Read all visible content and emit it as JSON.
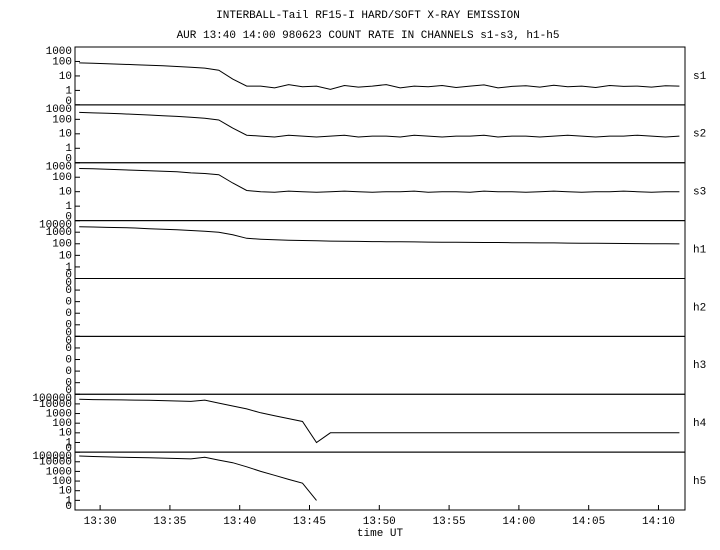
{
  "chart_data": [
    {
      "type": "line",
      "title": "INTERBALL-Tail RF15-I HARD/SOFT X-RAY EMISSION",
      "subtitle": "AUR 13:40 14:00 980623  COUNT RATE IN CHANNELS s1-s3, h1-h5",
      "label": "s1",
      "log": true,
      "color": "#000000",
      "xlim": [
        808.2,
        851.9
      ],
      "ylim": [
        0.1,
        1000
      ],
      "yticks": [
        1000,
        100,
        10,
        1,
        {
          "value": 0.1,
          "label": "0"
        }
      ],
      "x": [
        808.5,
        809.5,
        810.5,
        811.5,
        812.5,
        813.5,
        814.5,
        815.5,
        816.5,
        817.5,
        818.5,
        819.5,
        820.5,
        821.5,
        822.5,
        823.5,
        824.5,
        825.5,
        826.5,
        827.5,
        828.5,
        829.5,
        830.5,
        831.5,
        832.5,
        833.5,
        834.5,
        835.5,
        836.5,
        837.5,
        838.5,
        839.5,
        840.5,
        841.5,
        842.5,
        843.5,
        844.5,
        845.5,
        846.5,
        847.5,
        848.5,
        849.5,
        850.5,
        851.5
      ],
      "values": [
        80,
        75,
        70,
        65,
        60,
        55,
        50,
        45,
        40,
        35,
        25,
        6,
        2,
        2,
        1.5,
        2.5,
        1.8,
        2,
        1.2,
        2.2,
        1.7,
        2,
        2.5,
        1.5,
        2,
        1.8,
        2.2,
        1.6,
        2,
        2.4,
        1.5,
        1.9,
        2.1,
        1.7,
        2.3,
        1.8,
        2,
        1.6,
        2.2,
        1.9,
        2,
        1.7,
        2.1,
        2
      ]
    },
    {
      "type": "line",
      "label": "s2",
      "log": true,
      "color": "#000000",
      "xlim": [
        808.2,
        851.9
      ],
      "ylim": [
        0.1,
        1000
      ],
      "yticks": [
        1000,
        100,
        10,
        1,
        {
          "value": 0.1,
          "label": "0"
        }
      ],
      "x": [
        808.5,
        809.5,
        810.5,
        811.5,
        812.5,
        813.5,
        814.5,
        815.5,
        816.5,
        817.5,
        818.5,
        819.5,
        820.5,
        821.5,
        822.5,
        823.5,
        824.5,
        825.5,
        826.5,
        827.5,
        828.5,
        829.5,
        830.5,
        831.5,
        832.5,
        833.5,
        834.5,
        835.5,
        836.5,
        837.5,
        838.5,
        839.5,
        840.5,
        841.5,
        842.5,
        843.5,
        844.5,
        845.5,
        846.5,
        847.5,
        848.5,
        849.5,
        850.5,
        851.5
      ],
      "values": [
        300,
        280,
        260,
        240,
        220,
        200,
        180,
        160,
        140,
        120,
        90,
        25,
        8,
        7,
        6,
        8,
        7,
        6,
        7,
        8,
        6,
        7,
        7,
        6,
        8,
        7,
        6,
        7,
        7,
        8,
        6,
        7,
        7,
        6,
        7,
        8,
        7,
        6,
        7,
        7,
        8,
        7,
        6,
        7
      ]
    },
    {
      "type": "line",
      "label": "s3",
      "log": true,
      "color": "#000000",
      "xlim": [
        808.2,
        851.9
      ],
      "ylim": [
        0.1,
        1000
      ],
      "yticks": [
        1000,
        100,
        10,
        1,
        {
          "value": 0.1,
          "label": "0"
        }
      ],
      "x": [
        808.5,
        809.5,
        810.5,
        811.5,
        812.5,
        813.5,
        814.5,
        815.5,
        816.5,
        817.5,
        818.5,
        819.5,
        820.5,
        821.5,
        822.5,
        823.5,
        824.5,
        825.5,
        826.5,
        827.5,
        828.5,
        829.5,
        830.5,
        831.5,
        832.5,
        833.5,
        834.5,
        835.5,
        836.5,
        837.5,
        838.5,
        839.5,
        840.5,
        841.5,
        842.5,
        843.5,
        844.5,
        845.5,
        846.5,
        847.5,
        848.5,
        849.5,
        850.5,
        851.5
      ],
      "values": [
        400,
        380,
        360,
        330,
        300,
        280,
        260,
        240,
        200,
        180,
        150,
        40,
        12,
        10,
        9,
        11,
        10,
        9,
        10,
        11,
        10,
        9,
        10,
        10,
        11,
        9,
        10,
        10,
        9,
        11,
        10,
        10,
        9,
        10,
        11,
        10,
        9,
        10,
        10,
        11,
        10,
        9,
        10,
        10
      ]
    },
    {
      "type": "line",
      "label": "h1",
      "log": true,
      "color": "#000000",
      "xlim": [
        808.2,
        851.9
      ],
      "ylim": [
        0.1,
        10000
      ],
      "yticks": [
        10000,
        1000,
        100,
        10,
        1,
        {
          "value": 0.1,
          "label": "0"
        }
      ],
      "x": [
        808.5,
        809.5,
        810.5,
        811.5,
        812.5,
        813.5,
        814.5,
        815.5,
        816.5,
        817.5,
        818.5,
        819.5,
        820.5,
        821.5,
        822.5,
        823.5,
        824.5,
        825.5,
        826.5,
        827.5,
        828.5,
        829.5,
        830.5,
        831.5,
        832.5,
        833.5,
        834.5,
        835.5,
        836.5,
        837.5,
        838.5,
        839.5,
        840.5,
        841.5,
        842.5,
        843.5,
        844.5,
        845.5,
        846.5,
        847.5,
        848.5,
        849.5,
        850.5,
        851.5
      ],
      "values": [
        3000,
        2800,
        2600,
        2500,
        2300,
        2000,
        1800,
        1600,
        1400,
        1200,
        1000,
        600,
        300,
        250,
        220,
        200,
        190,
        180,
        170,
        165,
        160,
        155,
        150,
        148,
        145,
        140,
        138,
        135,
        132,
        130,
        128,
        125,
        122,
        120,
        118,
        115,
        112,
        110,
        108,
        105,
        103,
        100,
        100,
        98
      ]
    },
    {
      "type": "line",
      "label": "h2",
      "log": true,
      "color": "#000000",
      "xlim": [
        808.2,
        851.9
      ],
      "ylim": [
        1e-06,
        0.1
      ],
      "yticks": [
        {
          "value": 0.1,
          "label": "0"
        },
        {
          "value": 0.01,
          "label": "0"
        },
        {
          "value": 0.001,
          "label": "0"
        },
        {
          "value": 0.0001,
          "label": "0"
        },
        {
          "value": 1e-05,
          "label": "0"
        },
        {
          "value": 1e-06,
          "label": "0"
        }
      ]
    },
    {
      "type": "line",
      "label": "h3",
      "log": true,
      "color": "#000000",
      "xlim": [
        808.2,
        851.9
      ],
      "ylim": [
        1e-06,
        0.1
      ],
      "yticks": [
        {
          "value": 0.1,
          "label": "0"
        },
        {
          "value": 0.01,
          "label": "0"
        },
        {
          "value": 0.001,
          "label": "0"
        },
        {
          "value": 0.0001,
          "label": "0"
        },
        {
          "value": 1e-05,
          "label": "0"
        },
        {
          "value": 1e-06,
          "label": "0"
        }
      ]
    },
    {
      "type": "line",
      "label": "h4",
      "log": true,
      "color": "#000000",
      "xlim": [
        808.2,
        851.9
      ],
      "ylim": [
        0.1,
        100000
      ],
      "yticks": [
        100000,
        10000,
        1000,
        100,
        10,
        1,
        {
          "value": 0.1,
          "label": "0"
        }
      ],
      "x": [
        808.5,
        809.5,
        810.5,
        811.5,
        812.5,
        813.5,
        814.5,
        815.5,
        816.5,
        817.5,
        818.5,
        819.5,
        820.5,
        821.5,
        822.5,
        823.5,
        824.5,
        825.5,
        826.5,
        827.5,
        828.5,
        829.5,
        830.5,
        831.5,
        832.5,
        833.5,
        834.5,
        835.5,
        836.5,
        837.5,
        838.5,
        839.5,
        840.5,
        841.5,
        842.5,
        843.5,
        844.5,
        845.5,
        846.5,
        847.5,
        848.5,
        849.5,
        850.5,
        851.5
      ],
      "values": [
        30000,
        28000,
        27000,
        26000,
        25000,
        24000,
        22000,
        20000,
        18000,
        25000,
        12000,
        6000,
        3000,
        1200,
        600,
        300,
        150,
        1,
        10,
        10,
        10,
        10,
        10,
        10,
        10,
        10,
        10,
        10,
        10,
        10,
        10,
        10,
        10,
        10,
        10,
        10,
        10,
        10,
        10,
        10,
        10,
        10,
        10,
        10
      ]
    },
    {
      "type": "line",
      "label": "h5",
      "log": true,
      "color": "#000000",
      "xlabel": "time UT",
      "xlim": [
        808.2,
        851.9
      ],
      "ylim": [
        0.1,
        100000
      ],
      "yticks": [
        100000,
        10000,
        1000,
        100,
        10,
        1,
        {
          "value": 0.1,
          "label": "0"
        }
      ],
      "xticks": [
        {
          "value": 810,
          "label": "13:30"
        },
        {
          "value": 815,
          "label": "13:35"
        },
        {
          "value": 820,
          "label": "13:40"
        },
        {
          "value": 825,
          "label": "13:45"
        },
        {
          "value": 830,
          "label": "13:50"
        },
        {
          "value": 835,
          "label": "13:55"
        },
        {
          "value": 840,
          "label": "14:00"
        },
        {
          "value": 845,
          "label": "14:05"
        },
        {
          "value": 850,
          "label": "14:10"
        }
      ],
      "x": [
        808.5,
        809.5,
        810.5,
        811.5,
        812.5,
        813.5,
        814.5,
        815.5,
        816.5,
        817.5,
        818.5,
        819.5,
        820.5,
        821.5,
        822.5,
        823.5,
        824.5,
        825.5,
        826.5,
        827.5,
        828.5,
        829.5,
        830.5,
        831.5,
        832.5,
        833.5,
        834.5,
        835.5,
        836.5,
        837.5,
        838.5,
        839.5,
        840.5,
        841.5,
        842.5,
        843.5,
        844.5,
        845.5,
        846.5,
        847.5,
        848.5,
        849.5,
        850.5,
        851.5
      ],
      "values": [
        40000,
        35000,
        32000,
        30000,
        28000,
        26000,
        24000,
        22000,
        20000,
        30000,
        15000,
        8000,
        3000,
        1000,
        400,
        150,
        60,
        1,
        null,
        null,
        null,
        null,
        null,
        null,
        null,
        null,
        null,
        null,
        null,
        null,
        null,
        null,
        null,
        null,
        null,
        null,
        null,
        null,
        null,
        null,
        null,
        null,
        null,
        null
      ]
    }
  ]
}
